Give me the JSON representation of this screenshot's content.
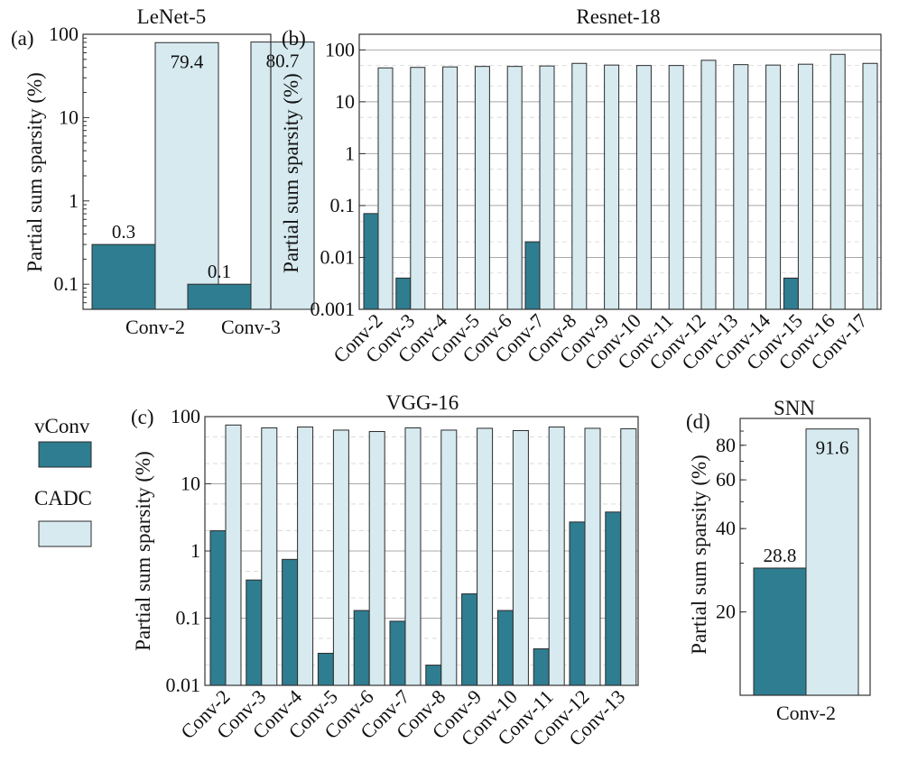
{
  "colors": {
    "vconv": "#2f7d90",
    "cadc": "#d6eaf0",
    "bar_stroke": "#2b2b2b"
  },
  "legend": {
    "items": [
      {
        "name": "vConv",
        "color": "#2f7d90"
      },
      {
        "name": "CADC",
        "color": "#d6eaf0"
      }
    ]
  },
  "chart_data": [
    {
      "id": "a",
      "panel_label": "(a)",
      "type": "bar",
      "title": "LeNet-5",
      "ylabel": "Partial sum sparsity (%)",
      "yscale": "log",
      "ylim": [
        0.05,
        100
      ],
      "yticks": [
        0.1,
        1,
        10,
        100
      ],
      "ytick_labels": [
        "0.1",
        "1",
        "10",
        "100"
      ],
      "categories": [
        "Conv-2",
        "Conv-3"
      ],
      "series": [
        {
          "name": "vConv",
          "values": [
            0.3,
            0.1
          ],
          "labels": [
            "0.3",
            "0.1"
          ]
        },
        {
          "name": "CADC",
          "values": [
            79.4,
            80.7
          ],
          "labels": [
            "79.4",
            "80.7"
          ]
        }
      ],
      "grid": false
    },
    {
      "id": "b",
      "panel_label": "(b)",
      "type": "bar",
      "title": "Resnet-18",
      "ylabel": "Partial sum sparsity (%)",
      "yscale": "log",
      "ylim": [
        0.001,
        200
      ],
      "yticks": [
        0.001,
        0.01,
        0.1,
        1,
        10,
        100
      ],
      "ytick_labels": [
        "0.001",
        "0.01",
        "0.1",
        "1",
        "10",
        "100"
      ],
      "categories": [
        "Conv-2",
        "Conv-3",
        "Conv-4",
        "Conv-5",
        "Conv-6",
        "Conv-7",
        "Conv-8",
        "Conv-9",
        "Conv-10",
        "Conv-11",
        "Conv-12",
        "Conv-13",
        "Conv-14",
        "Conv-15",
        "Conv-16",
        "Conv-17"
      ],
      "series": [
        {
          "name": "vConv",
          "values": [
            0.07,
            0.004,
            null,
            null,
            null,
            0.02,
            null,
            null,
            null,
            null,
            null,
            null,
            null,
            0.004,
            null,
            null
          ]
        },
        {
          "name": "CADC",
          "values": [
            45,
            46,
            47,
            48,
            48,
            49,
            55,
            51,
            50,
            50,
            63,
            52,
            51,
            53,
            82,
            55
          ]
        }
      ],
      "grid": true
    },
    {
      "id": "c",
      "panel_label": "(c)",
      "type": "bar",
      "title": "VGG-16",
      "ylabel": "Partial sum sparsity (%)",
      "yscale": "log",
      "ylim": [
        0.01,
        100
      ],
      "yticks": [
        0.01,
        0.1,
        1,
        10,
        100
      ],
      "ytick_labels": [
        "0.01",
        "0.1",
        "1",
        "10",
        "100"
      ],
      "categories": [
        "Conv-2",
        "Conv-3",
        "Conv-4",
        "Conv-5",
        "Conv-6",
        "Conv-7",
        "Conv-8",
        "Conv-9",
        "Conv-10",
        "Conv-11",
        "Conv-12",
        "Conv-13"
      ],
      "series": [
        {
          "name": "vConv",
          "values": [
            2.0,
            0.37,
            0.75,
            0.03,
            0.13,
            0.09,
            0.02,
            0.23,
            0.13,
            0.035,
            2.7,
            3.8
          ]
        },
        {
          "name": "CADC",
          "values": [
            75,
            68,
            70,
            63,
            60,
            68,
            63,
            67,
            62,
            70,
            67,
            66
          ]
        }
      ],
      "grid": true
    },
    {
      "id": "d",
      "panel_label": "(d)",
      "type": "bar",
      "title": "SNN",
      "ylabel": "Partial sum sparsity (%)",
      "yscale": "log",
      "ylim": [
        10,
        100
      ],
      "yticks": [
        20,
        40,
        60,
        80
      ],
      "ytick_labels": [
        "20",
        "40",
        "60",
        "80"
      ],
      "categories": [
        "Conv-2"
      ],
      "series": [
        {
          "name": "vConv",
          "values": [
            28.8
          ],
          "labels": [
            "28.8"
          ]
        },
        {
          "name": "CADC",
          "values": [
            91.6
          ],
          "labels": [
            "91.6"
          ]
        }
      ],
      "grid": false
    }
  ]
}
